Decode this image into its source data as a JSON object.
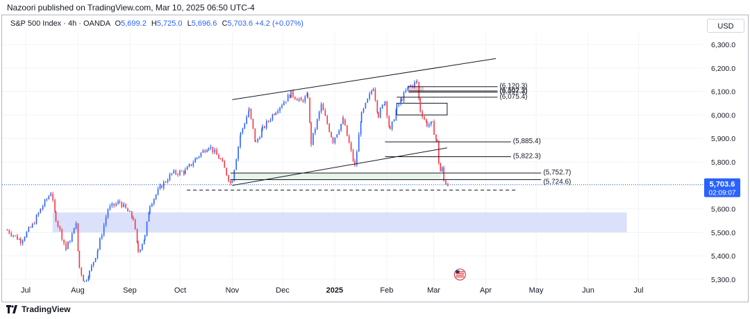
{
  "header": {
    "published": "Nazoori published on TradingView.com, Mar 10, 2025 06:50 UTC-4"
  },
  "legend": {
    "symbol": "S&P 500 Index · 4h · OANDA",
    "open_label": "O",
    "open": "5,699.2",
    "high_label": "H",
    "high": "5,725.0",
    "low_label": "L",
    "low": "5,696.6",
    "close_label": "C",
    "close": "5,703.6",
    "change": "+4.2 (+0.07%)"
  },
  "currency_button": "USD",
  "price_tag": {
    "price": "5,703.6",
    "countdown": "02:09:07"
  },
  "brand": {
    "name": "TradingView"
  },
  "colors": {
    "up": "#2962ff",
    "down": "#f23645",
    "price_line": "#2962ff",
    "zone": "#dbe0fb",
    "accent": "#2962ff"
  },
  "icons": {
    "brand_logo": "tradingview-logo-icon",
    "news_flag": "us-flag-icon"
  },
  "chart_data": {
    "type": "candlestick",
    "interval": "4h",
    "ylim": [
      5270,
      6340
    ],
    "y_ticks": [
      "6,300.0",
      "6,200.0",
      "6,100.0",
      "6,000.0",
      "5,900.0",
      "5,800.0",
      "5,700.0",
      "5,600.0",
      "5,500.0",
      "5,400.0",
      "5,300.0"
    ],
    "x_ticks": [
      {
        "label": "Jul",
        "date": "2024-07-01"
      },
      {
        "label": "Aug",
        "date": "2024-08-01"
      },
      {
        "label": "Sep",
        "date": "2024-09-01"
      },
      {
        "label": "Oct",
        "date": "2024-10-01"
      },
      {
        "label": "Nov",
        "date": "2024-11-01"
      },
      {
        "label": "Dec",
        "date": "2024-12-01"
      },
      {
        "label": "2025",
        "date": "2025-01-01",
        "bold": true
      },
      {
        "label": "Feb",
        "date": "2025-02-01"
      },
      {
        "label": "Mar",
        "date": "2025-03-01"
      },
      {
        "label": "Apr",
        "date": "2025-04-01"
      },
      {
        "label": "May",
        "date": "2025-05-01"
      },
      {
        "label": "Jun",
        "date": "2025-06-01"
      },
      {
        "label": "Jul",
        "date": "2025-07-01"
      }
    ],
    "price_path": [
      [
        "2024-06-20",
        5510
      ],
      [
        "2024-06-28",
        5465
      ],
      [
        "2024-07-05",
        5530
      ],
      [
        "2024-07-10",
        5600
      ],
      [
        "2024-07-16",
        5670
      ],
      [
        "2024-07-19",
        5560
      ],
      [
        "2024-07-25",
        5430
      ],
      [
        "2024-07-31",
        5530
      ],
      [
        "2024-08-02",
        5350
      ],
      [
        "2024-08-05",
        5290
      ],
      [
        "2024-08-08",
        5330
      ],
      [
        "2024-08-13",
        5430
      ],
      [
        "2024-08-19",
        5600
      ],
      [
        "2024-08-26",
        5630
      ],
      [
        "2024-09-03",
        5560
      ],
      [
        "2024-09-06",
        5420
      ],
      [
        "2024-09-10",
        5480
      ],
      [
        "2024-09-13",
        5620
      ],
      [
        "2024-09-20",
        5700
      ],
      [
        "2024-09-26",
        5750
      ],
      [
        "2024-10-04",
        5760
      ],
      [
        "2024-10-11",
        5820
      ],
      [
        "2024-10-18",
        5870
      ],
      [
        "2024-10-25",
        5810
      ],
      [
        "2024-10-31",
        5710
      ],
      [
        "2024-11-01",
        5730
      ],
      [
        "2024-11-06",
        5920
      ],
      [
        "2024-11-11",
        6020
      ],
      [
        "2024-11-15",
        5880
      ],
      [
        "2024-11-19",
        5940
      ],
      [
        "2024-11-27",
        6020
      ],
      [
        "2024-12-06",
        6090
      ],
      [
        "2024-12-12",
        6060
      ],
      [
        "2024-12-16",
        6080
      ],
      [
        "2024-12-18",
        5880
      ],
      [
        "2024-12-24",
        6040
      ],
      [
        "2024-12-31",
        5890
      ],
      [
        "2025-01-06",
        5980
      ],
      [
        "2025-01-13",
        5780
      ],
      [
        "2025-01-17",
        6000
      ],
      [
        "2025-01-24",
        6120
      ],
      [
        "2025-01-27",
        6000
      ],
      [
        "2025-01-31",
        6060
      ],
      [
        "2025-02-03",
        5930
      ],
      [
        "2025-02-07",
        6030
      ],
      [
        "2025-02-10",
        6070
      ],
      [
        "2025-02-14",
        6120
      ],
      [
        "2025-02-19",
        6140
      ],
      [
        "2025-02-21",
        6020
      ],
      [
        "2025-02-25",
        5960
      ],
      [
        "2025-02-28",
        5960
      ],
      [
        "2025-03-03",
        5880
      ],
      [
        "2025-03-04",
        5800
      ],
      [
        "2025-03-05",
        5760
      ],
      [
        "2025-03-06",
        5770
      ],
      [
        "2025-03-07",
        5720
      ],
      [
        "2025-03-10",
        5700
      ]
    ],
    "horizontal_levels": [
      {
        "price": 6120.3,
        "label": "(6,120.3)"
      },
      {
        "price": 6102.2,
        "label": "(6,102.2)"
      },
      {
        "price": 6097.3,
        "label": "(6,097.3)"
      },
      {
        "price": 6075.4,
        "label": "(6,075.4)"
      },
      {
        "price": 5885.4,
        "label": "(5,885.4)"
      },
      {
        "price": 5822.3,
        "label": "(5,822.3)"
      },
      {
        "price": 5752.7,
        "label": "(5,752.7)"
      },
      {
        "price": 5724.6,
        "label": "(5,724.6)"
      }
    ],
    "zones": [
      {
        "from": "2024-07-17",
        "to": "2025-06-24",
        "low": 5500,
        "high": 5585,
        "color": "#dbe0fb"
      },
      {
        "from": "2025-02-07",
        "to": "2025-03-09",
        "low": 6000,
        "high": 6050,
        "color": "#ffffff"
      },
      {
        "from": "2024-10-31",
        "to": "2025-03-05",
        "low": 5722,
        "high": 5752,
        "color": "#e8f5e9"
      },
      {
        "from": "2025-02-14",
        "to": "2025-02-23",
        "low": 6100,
        "high": 6120,
        "color": "#f8c8cc"
      }
    ],
    "trendlines": [
      {
        "from": [
          "2024-11-01",
          6065
        ],
        "to": [
          "2025-04-07",
          6240
        ]
      },
      {
        "from": [
          "2024-11-01",
          5700
        ],
        "to": [
          "2025-03-09",
          5860
        ]
      }
    ],
    "dashed_line": {
      "from": "2024-10-05",
      "to": "2025-04-20",
      "price": 5680
    },
    "last_price": 5703.6
  }
}
